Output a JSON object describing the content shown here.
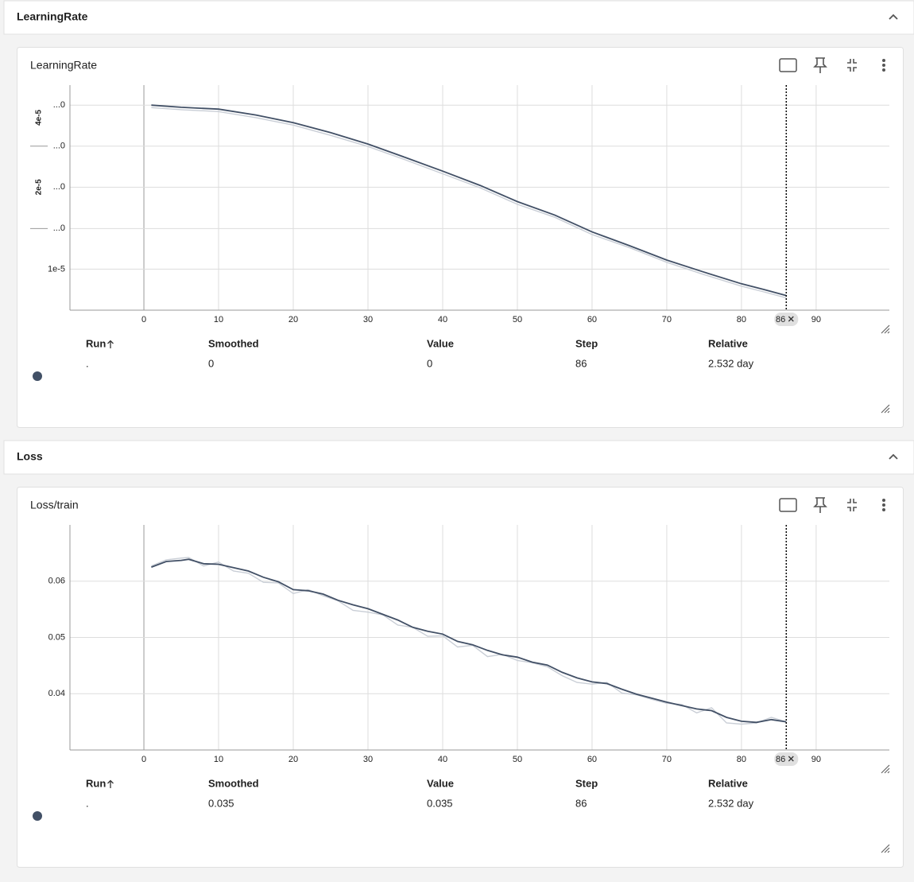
{
  "sections": [
    {
      "title": "LearningRate",
      "card": {
        "title": "LearningRate",
        "table": {
          "columns": [
            "Run",
            "Smoothed",
            "Value",
            "Step",
            "Relative"
          ],
          "rows": [
            [
              ".",
              "0",
              "0",
              "86",
              "2.532 day"
            ]
          ]
        }
      }
    },
    {
      "title": "Loss",
      "card": {
        "title": "Loss/train",
        "table": {
          "columns": [
            "Run",
            "Smoothed",
            "Value",
            "Step",
            "Relative"
          ],
          "rows": [
            [
              ".",
              "0.035",
              "0.035",
              "86",
              "2.532 day"
            ]
          ]
        }
      }
    }
  ],
  "chart_data": [
    {
      "type": "line",
      "log_y": true,
      "grid": true,
      "x": [
        1,
        5,
        10,
        15,
        20,
        25,
        30,
        35,
        40,
        45,
        50,
        55,
        60,
        65,
        70,
        75,
        80,
        83,
        86
      ],
      "series": [
        {
          "color": "#c9ced6",
          "values": [
            3.92e-05,
            3.85e-05,
            3.79e-05,
            3.6e-05,
            3.38e-05,
            3.1e-05,
            2.82e-05,
            2.52e-05,
            2.24e-05,
            1.99e-05,
            1.73e-05,
            1.55e-05,
            1.34e-05,
            1.2e-05,
            1.06e-05,
            9.55e-06,
            8.66e-06,
            8.25e-06,
            7.84e-06
          ]
        },
        {
          "color": "#425066",
          "values": [
            4e-05,
            3.93e-05,
            3.87e-05,
            3.68e-05,
            3.45e-05,
            3.17e-05,
            2.88e-05,
            2.57e-05,
            2.29e-05,
            2.03e-05,
            1.77e-05,
            1.58e-05,
            1.37e-05,
            1.22e-05,
            1.08e-05,
            9.75e-06,
            8.84e-06,
            8.42e-06,
            8e-06
          ]
        }
      ],
      "xlim": [
        -9.9,
        99.8
      ],
      "xticks": [
        0,
        10,
        20,
        30,
        40,
        50,
        60,
        70,
        80,
        90
      ],
      "ylim": [
        7.07e-06,
        4.74e-05
      ],
      "yticks": [
        {
          "value": 4e-05,
          "label": "...0"
        },
        {
          "value": 2.83e-05,
          "label": "...0"
        },
        {
          "value": 2e-05,
          "label": "...0"
        },
        {
          "value": 1.41e-05,
          "label": "...0"
        },
        {
          "value": 1e-05,
          "label": "1e-5"
        }
      ],
      "y_side_labels": [
        {
          "value": 3.6e-05,
          "label": "4e-5"
        },
        {
          "value": 2e-05,
          "label": "2e-5"
        }
      ],
      "cursor_step": 86
    },
    {
      "type": "line",
      "log_y": false,
      "grid": true,
      "x": [
        1,
        3,
        5,
        6,
        8,
        10,
        12,
        14,
        16,
        18,
        20,
        22,
        24,
        26,
        28,
        30,
        32,
        34,
        36,
        38,
        40,
        42,
        44,
        46,
        48,
        50,
        52,
        54,
        56,
        58,
        60,
        62,
        64,
        66,
        68,
        70,
        72,
        74,
        76,
        78,
        80,
        82,
        84,
        86
      ],
      "series": [
        {
          "color": "#c9ced6",
          "values": [
            0.0627,
            0.0638,
            0.0641,
            0.0642,
            0.0627,
            0.0634,
            0.0618,
            0.0614,
            0.0598,
            0.0597,
            0.0578,
            0.0585,
            0.0574,
            0.0565,
            0.0548,
            0.0545,
            0.054,
            0.0522,
            0.0518,
            0.0502,
            0.0503,
            0.0483,
            0.0486,
            0.0466,
            0.047,
            0.0459,
            0.0455,
            0.0448,
            0.0432,
            0.042,
            0.0417,
            0.042,
            0.0401,
            0.0398,
            0.039,
            0.0383,
            0.0381,
            0.0366,
            0.0375,
            0.0348,
            0.0346,
            0.0348,
            0.0358,
            0.035
          ]
        },
        {
          "color": "#425066",
          "values": [
            0.0625,
            0.0635,
            0.0637,
            0.0639,
            0.0631,
            0.063,
            0.0624,
            0.0618,
            0.0607,
            0.0599,
            0.0585,
            0.0583,
            0.0577,
            0.0566,
            0.0558,
            0.0551,
            0.0541,
            0.0531,
            0.0518,
            0.0511,
            0.0506,
            0.0493,
            0.0487,
            0.0477,
            0.0469,
            0.0465,
            0.0456,
            0.0451,
            0.0438,
            0.0428,
            0.0421,
            0.0418,
            0.0408,
            0.0399,
            0.0392,
            0.0385,
            0.0379,
            0.0373,
            0.037,
            0.0358,
            0.0351,
            0.0349,
            0.0354,
            0.035
          ]
        }
      ],
      "xlim": [
        -9.9,
        99.8
      ],
      "xticks": [
        0,
        10,
        20,
        30,
        40,
        50,
        60,
        70,
        80,
        90
      ],
      "ylim": [
        0.03,
        0.07
      ],
      "yticks": [
        0.04,
        0.05,
        0.06
      ],
      "cursor_step": 86
    }
  ]
}
